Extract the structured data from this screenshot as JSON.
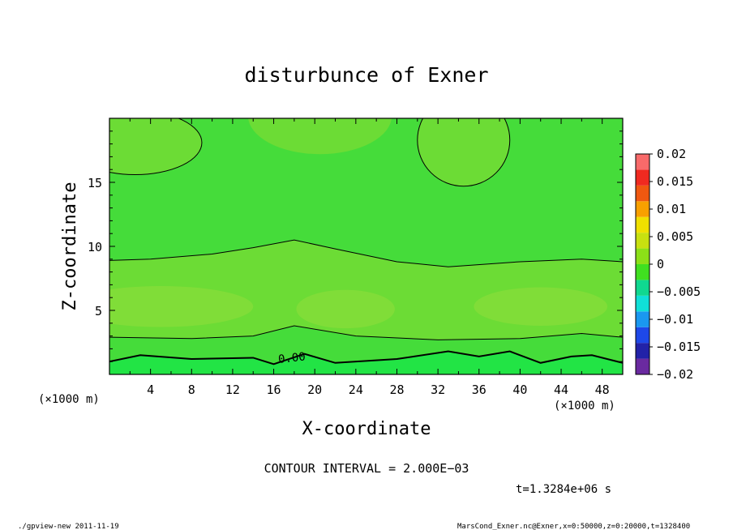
{
  "chart_data": {
    "type": "contour",
    "title": "disturbunce of Exner",
    "xlabel": "X-coordinate",
    "ylabel": "Z-coordinate",
    "x_unit": "(×1000 m)",
    "y_unit": "(×1000 m)",
    "xlim": [
      0,
      50
    ],
    "ylim": [
      0,
      20
    ],
    "x_ticks": [
      4,
      8,
      12,
      16,
      20,
      24,
      28,
      32,
      36,
      40,
      44,
      48
    ],
    "y_ticks": [
      5,
      10,
      15
    ],
    "x_tick_labels": [
      "4",
      "8",
      "12",
      "16",
      "20",
      "24",
      "28",
      "32",
      "36",
      "40",
      "44",
      "48"
    ],
    "y_tick_labels": [
      "5",
      "10",
      "15"
    ],
    "contour_label": "0.00",
    "colorbar": {
      "levels": [
        -0.02,
        -0.015,
        -0.01,
        -0.005,
        0,
        0.005,
        0.01,
        0.015,
        0.02
      ],
      "labels": [
        "0.02",
        "0.015",
        "0.01",
        "0.005",
        "0",
        "−0.005",
        "−0.01",
        "−0.015",
        "−0.02"
      ],
      "colors": [
        "#6a2aa0",
        "#2222a8",
        "#1e48e8",
        "#1a98f0",
        "#10e0d8",
        "#10d890",
        "#40e020",
        "#8ce018",
        "#c8e010",
        "#f0e000",
        "#f8a000",
        "#f05810",
        "#f02a20",
        "#f86a6a"
      ]
    },
    "field_colors": {
      "base": "#45dc3a",
      "lighter": "#6cdc35",
      "lightest": "#80dd38",
      "bottom": "#22e445"
    },
    "contour_interval_text": "CONTOUR INTERVAL = 2.000E−03",
    "time_text": "t=1.3284e+06 s"
  },
  "footer": {
    "left": "./gpview-new  2011-11-19",
    "right": "MarsCond_Exner.nc@Exner,x=0:50000,z=0:20000,t=1328400"
  }
}
